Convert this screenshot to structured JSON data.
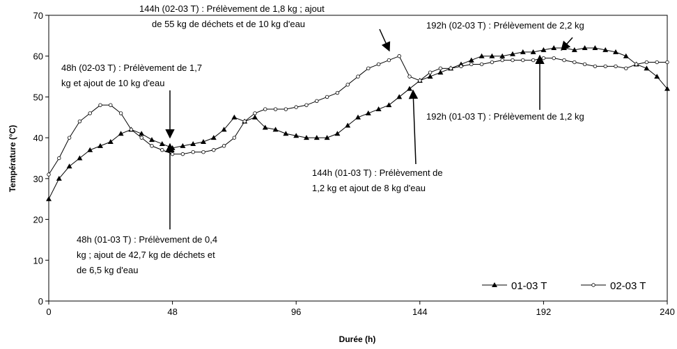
{
  "chart_data": {
    "type": "line",
    "x_label": "Durée (h)",
    "y_label": "Température (°C)",
    "x": [
      0,
      4,
      8,
      12,
      16,
      20,
      24,
      28,
      32,
      36,
      40,
      44,
      48,
      52,
      56,
      60,
      64,
      68,
      72,
      76,
      80,
      84,
      88,
      92,
      96,
      100,
      104,
      108,
      112,
      116,
      120,
      124,
      128,
      132,
      136,
      140,
      144,
      148,
      152,
      156,
      160,
      164,
      168,
      172,
      176,
      180,
      184,
      188,
      192,
      196,
      200,
      204,
      208,
      212,
      216,
      220,
      224,
      228,
      232,
      236,
      240
    ],
    "series": [
      {
        "name": "01-03 T",
        "color": "#000000",
        "marker": "triangle",
        "values": [
          25,
          30,
          33,
          35,
          37,
          38,
          39,
          41,
          42,
          41,
          39.5,
          38.5,
          37.5,
          38,
          38.5,
          39,
          40,
          42,
          45,
          44,
          45,
          42.5,
          42,
          41,
          40.5,
          40,
          40,
          40,
          41,
          43,
          45,
          46,
          47,
          48,
          50,
          52,
          54,
          55,
          56,
          57,
          58,
          59,
          60,
          60,
          60,
          60.5,
          61,
          61,
          61.5,
          62,
          62,
          61.5,
          62,
          62,
          61.5,
          61,
          60,
          58,
          57,
          55,
          52
        ]
      },
      {
        "name": "02-03 T",
        "color": "#000000",
        "marker": "circle",
        "values": [
          31,
          35,
          40,
          44,
          46,
          48,
          48,
          46,
          42,
          40,
          38,
          37,
          36,
          36,
          36.5,
          36.5,
          37,
          38,
          40,
          44,
          46,
          47,
          47,
          47,
          47.5,
          48,
          49,
          50,
          51,
          53,
          55,
          57,
          58,
          59,
          60,
          55,
          54,
          56,
          57,
          57,
          57.5,
          58,
          58,
          58.5,
          59,
          59,
          59,
          59,
          59.5,
          59.5,
          59,
          58.5,
          58,
          57.5,
          57.5,
          57.5,
          57,
          58,
          58.5,
          58.5,
          58.5
        ]
      }
    ],
    "xlim": [
      0,
      240
    ],
    "xticks": [
      0,
      48,
      96,
      144,
      192,
      240
    ],
    "ylim": [
      0,
      70
    ],
    "yticks": [
      0,
      10,
      20,
      30,
      40,
      50,
      60,
      70
    ],
    "legend": "lower right",
    "annotations": [
      {
        "lines": [
          "144h  (02-03 T) : Prélèvement de 1,8 kg ; ajout",
          "de 55 kg de déchets et de 10 kg d'eau"
        ]
      },
      {
        "lines": [
          "192h  (02-03 T) : Prélèvement de 2,2 kg"
        ]
      },
      {
        "lines": [
          "48h  (02-03 T) : Prélèvement de 1,7",
          "kg  et ajout de  10 kg d'eau"
        ]
      },
      {
        "lines": [
          "192h  (01-03 T) : Prélèvement de 1,2 kg"
        ]
      },
      {
        "lines": [
          "144h  (01-03 T) : Prélèvement de",
          "1,2 kg  et ajout de  8 kg d'eau"
        ]
      },
      {
        "lines": [
          "48h  (01-03 T) : Prélèvement de 0,4",
          "kg ; ajout de 42,7 kg de déchets et",
          "de 6,5 kg d'eau"
        ]
      }
    ]
  }
}
